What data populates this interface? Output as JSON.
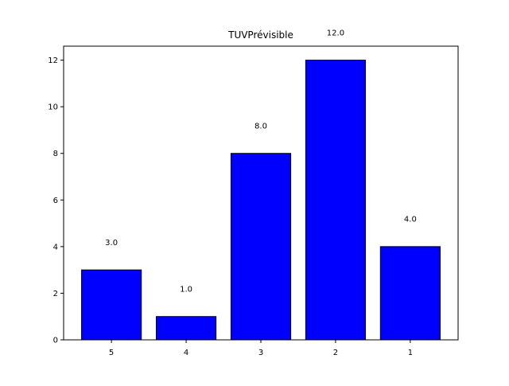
{
  "chart_data": {
    "type": "bar",
    "title": "TUVPrévisible",
    "xlabel": "",
    "ylabel": "",
    "categories": [
      "5",
      "4",
      "3",
      "2",
      "1"
    ],
    "values": [
      3,
      1,
      8,
      12,
      4
    ],
    "data_labels": [
      "3.0",
      "1.0",
      "8.0",
      "12.0",
      "4.0"
    ],
    "ylim": [
      0,
      12.6
    ],
    "yticks": [
      0,
      2,
      4,
      6,
      8,
      10,
      12
    ],
    "grid": false,
    "legend": "none",
    "bar_color": "#0000ff",
    "bar_edge_color": "#000000"
  }
}
